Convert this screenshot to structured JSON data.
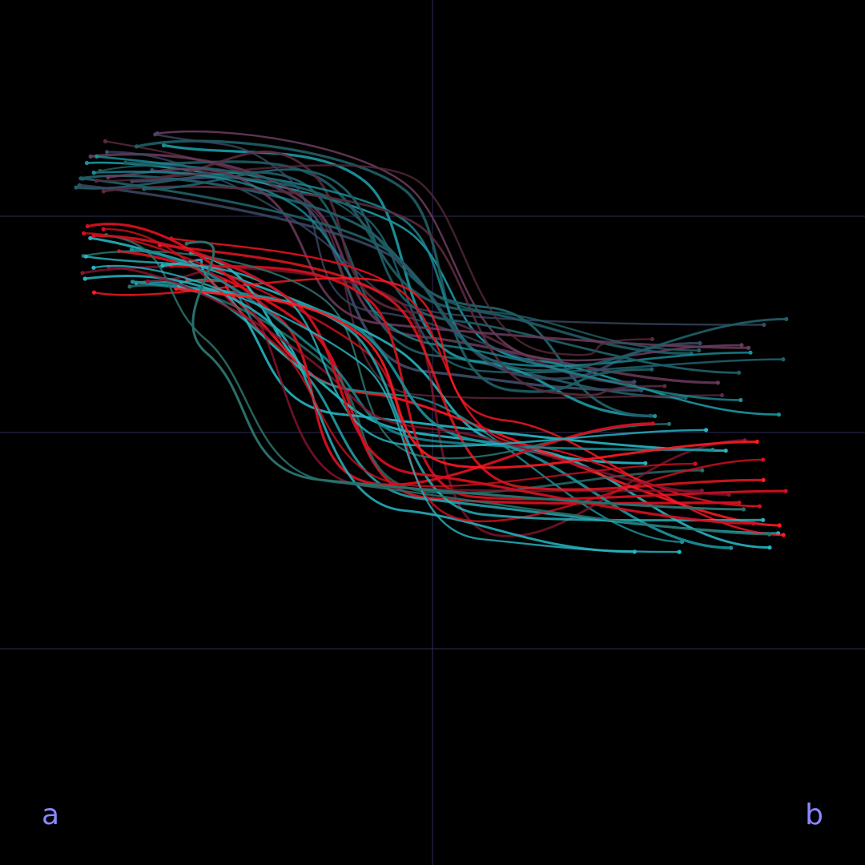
{
  "labels": {
    "left": "a",
    "right": "b"
  },
  "colors": {
    "background": "#000000",
    "grid": "#2f2d57",
    "label": "#8c87ff",
    "palette": [
      "#1f5e66",
      "#1a8f99",
      "#27b5c0",
      "#2a6f6a",
      "#5a2b3e",
      "#8a1530",
      "#d4101f",
      "#ff1a24",
      "#3a4a66",
      "#6a3a5c"
    ]
  },
  "trajectory_field": {
    "strand_count": 52,
    "strand_thickness": "fine"
  }
}
